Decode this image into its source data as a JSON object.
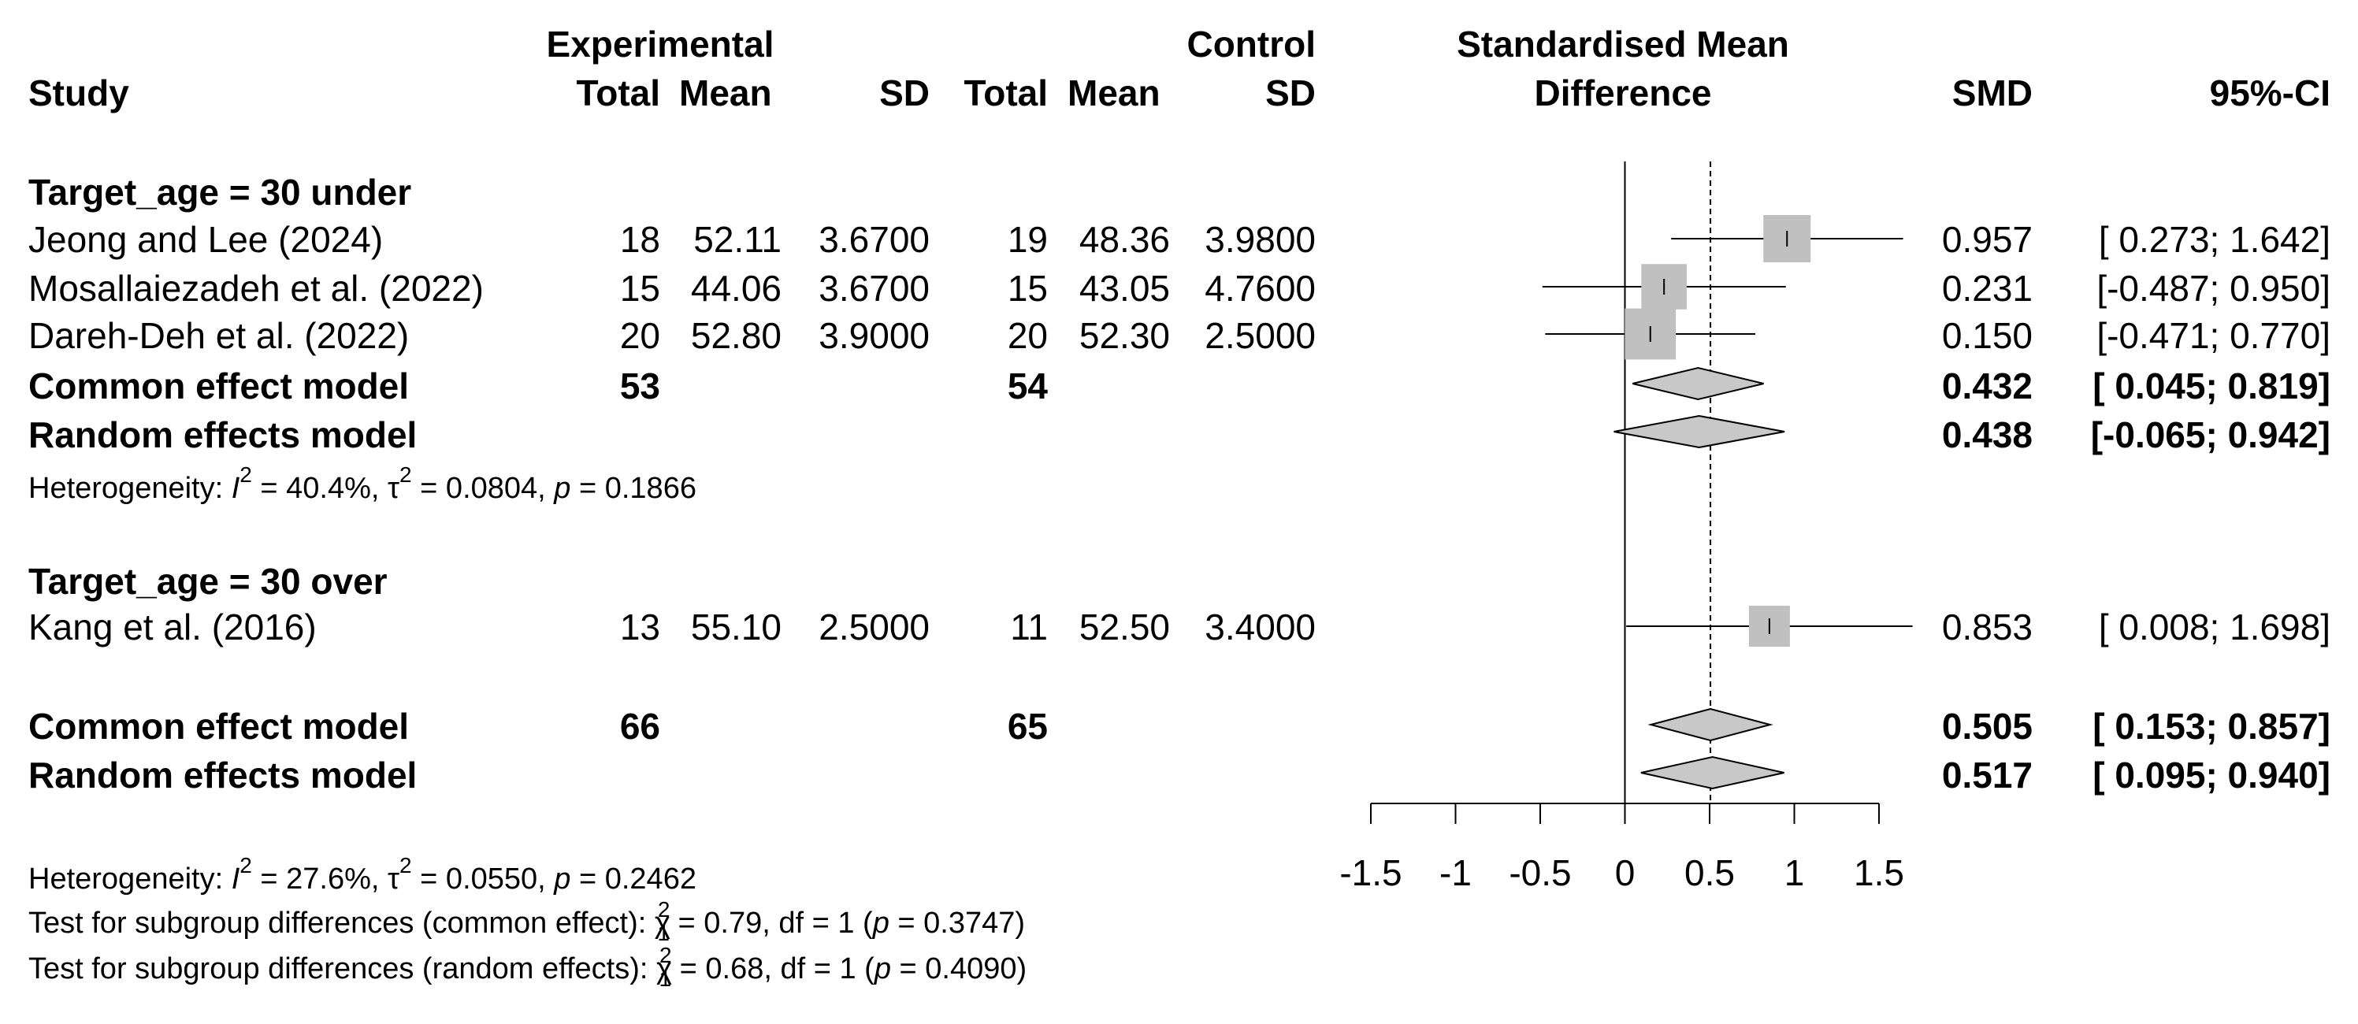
{
  "headers": {
    "study": "Study",
    "experimental": "Experimental",
    "control": "Control",
    "total": "Total",
    "mean": "Mean",
    "sd": "SD",
    "smd_title_1": "Standardised Mean",
    "smd_title_2": "Difference",
    "smd": "SMD",
    "ci": "95%-CI"
  },
  "subgroups": [
    {
      "label": "Target_age = 30 under",
      "studies": [
        {
          "name": "Jeong and Lee (2024)",
          "e_total": "18",
          "e_mean": "52.11",
          "e_sd": "3.6700",
          "c_total": "19",
          "c_mean": "48.36",
          "c_sd": "3.9800",
          "smd": 0.957,
          "lower": 0.273,
          "upper": 1.642,
          "smd_text": "0.957",
          "ci_text": "[ 0.273; 1.642]",
          "weight": 0.3
        },
        {
          "name": "Mosallaiezadeh et al. (2022)",
          "e_total": "15",
          "e_mean": "44.06",
          "e_sd": "3.6700",
          "c_total": "15",
          "c_mean": "43.05",
          "c_sd": "4.7600",
          "smd": 0.231,
          "lower": -0.487,
          "upper": 0.95,
          "smd_text": "0.231",
          "ci_text": "[-0.487; 0.950]",
          "weight": 0.27
        },
        {
          "name": "Dareh-Deh et al. (2022)",
          "e_total": "20",
          "e_mean": "52.80",
          "e_sd": "3.9000",
          "c_total": "20",
          "c_mean": "52.30",
          "c_sd": "2.5000",
          "smd": 0.15,
          "lower": -0.471,
          "upper": 0.77,
          "smd_text": "0.150",
          "ci_text": "[-0.471; 0.770]",
          "weight": 0.36
        }
      ],
      "common": {
        "label": "Common effect model",
        "e_total": "53",
        "c_total": "54",
        "smd": 0.432,
        "lower": 0.045,
        "upper": 0.819,
        "smd_text": "0.432",
        "ci_text": "[ 0.045; 0.819]"
      },
      "random": {
        "label": "Random effects model",
        "smd": 0.438,
        "lower": -0.065,
        "upper": 0.942,
        "smd_text": "0.438",
        "ci_text": "[-0.065; 0.942]"
      },
      "heterogeneity": {
        "prefix": "Heterogeneity: ",
        "i2": " = 40.4%, ",
        "tau2": " = 0.0804, ",
        "p": " = 0.1866"
      }
    },
    {
      "label": "Target_age = 30 over",
      "studies": [
        {
          "name": "Kang et al. (2016)",
          "e_total": "13",
          "e_mean": "55.10",
          "e_sd": "2.5000",
          "c_total": "11",
          "c_mean": "52.50",
          "c_sd": "3.4000",
          "smd": 0.853,
          "lower": 0.008,
          "upper": 1.698,
          "smd_text": "0.853",
          "ci_text": "[ 0.008; 1.698]",
          "weight": 0.2
        }
      ]
    }
  ],
  "overall": {
    "common": {
      "label": "Common effect model",
      "e_total": "66",
      "c_total": "65",
      "smd": 0.505,
      "lower": 0.153,
      "upper": 0.857,
      "smd_text": "0.505",
      "ci_text": "[ 0.153; 0.857]"
    },
    "random": {
      "label": "Random effects model",
      "smd": 0.517,
      "lower": 0.095,
      "upper": 0.94,
      "smd_text": "0.517",
      "ci_text": "[ 0.095; 0.940]"
    },
    "heterogeneity": {
      "prefix": "Heterogeneity: ",
      "i2": " = 27.6%, ",
      "tau2": " = 0.0550, ",
      "p": " = 0.2462"
    },
    "test_common": {
      "prefix": "Test for subgroup differences (common effect): ",
      "stat": " = 0.79, df = 1 (",
      "p": " = 0.3747)"
    },
    "test_random": {
      "prefix": "Test for subgroup differences (random effects): ",
      "stat": " = 0.68, df = 1 (",
      "p": " = 0.4090)"
    }
  },
  "symbols": {
    "i": "I",
    "sq": "2",
    "tau": "τ",
    "p": "p",
    "chi": "χ",
    "one": "1"
  },
  "chart_data": {
    "type": "forest",
    "title": "Standardised Mean Difference",
    "xlabel": "Standardised Mean Difference",
    "xlim": [
      -1.5,
      1.5
    ],
    "xticks": [
      -1.5,
      -1,
      -0.5,
      0,
      0.5,
      1,
      1.5
    ],
    "xtick_labels": [
      "-1.5",
      "-1",
      "-0.5",
      "0",
      "0.5",
      "1",
      "1.5"
    ],
    "null_line": 0,
    "reference_line": 0.505,
    "colors": {
      "box": "#c0c0c0",
      "diamond": "#c8c8c8",
      "line": "#000000"
    }
  }
}
